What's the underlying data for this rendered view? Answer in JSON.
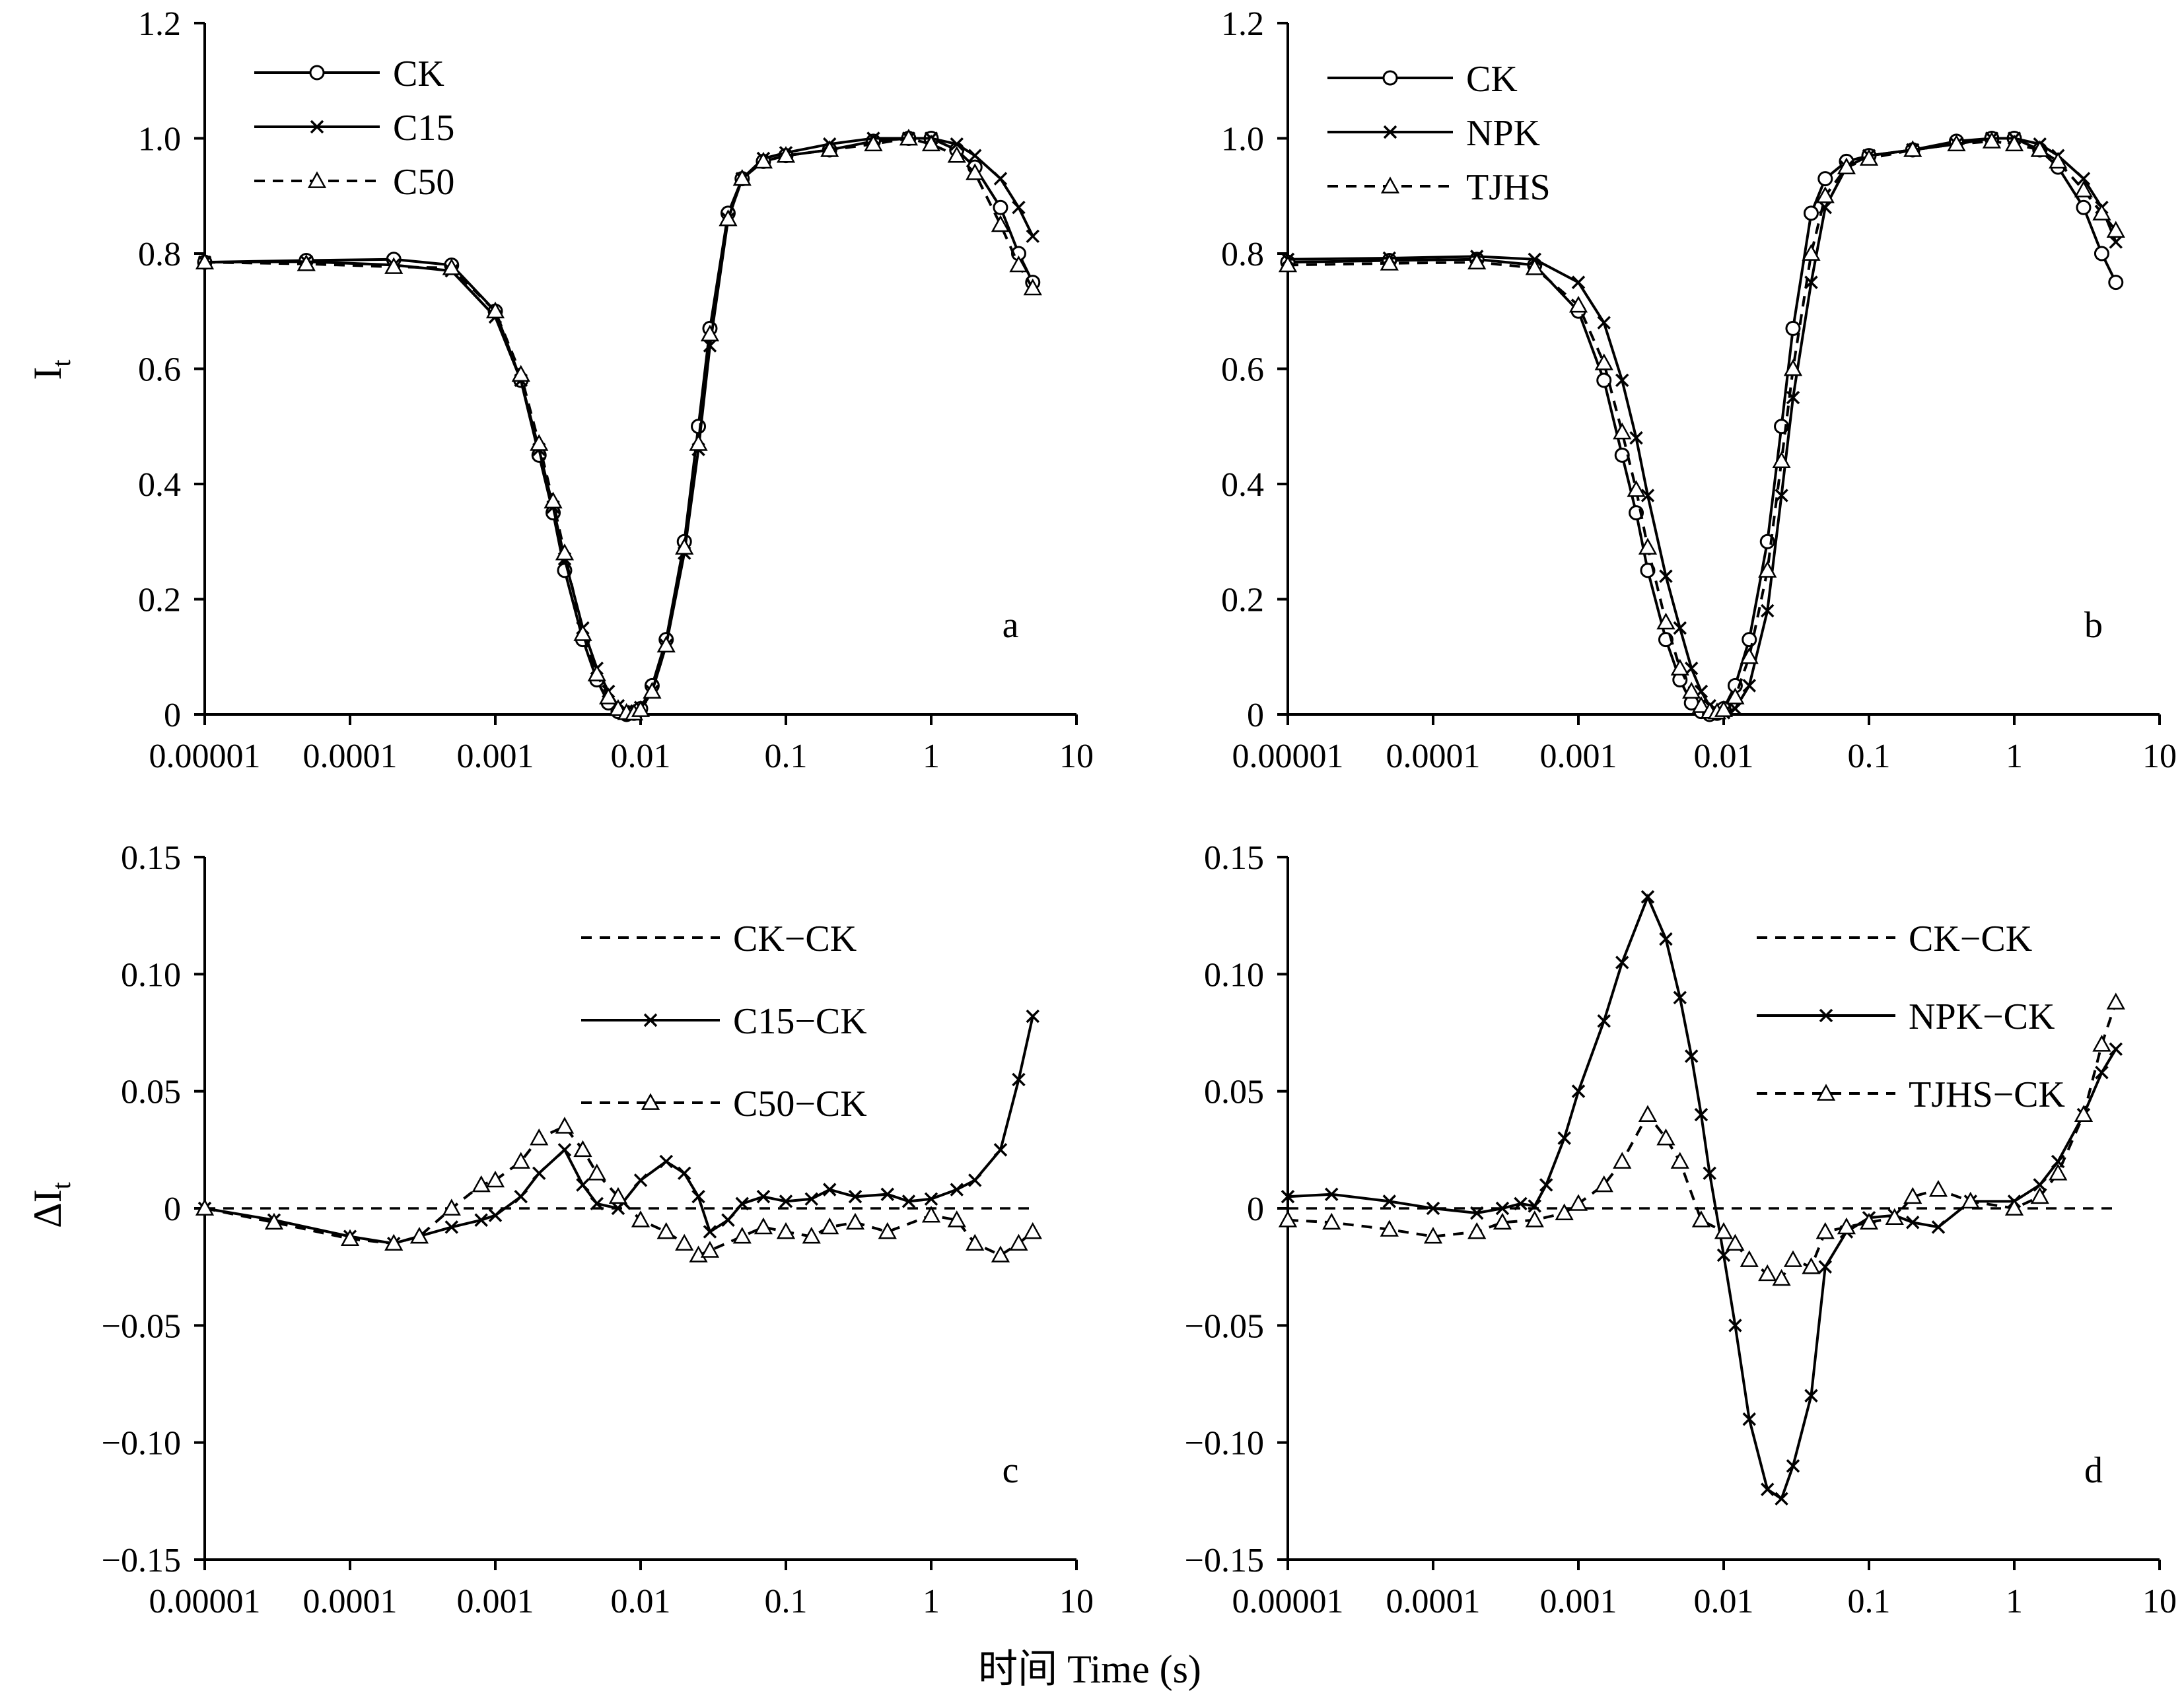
{
  "figure": {
    "shared_xlabel": "时间 Time (s)"
  },
  "chart_data": [
    {
      "id": "a",
      "type": "line",
      "panel_label": "a",
      "xscale": "log",
      "xlim": [
        1e-05,
        10
      ],
      "ylim": [
        0,
        1.2
      ],
      "xticks": [
        1e-05,
        0.0001,
        0.001,
        0.01,
        0.1,
        1,
        10
      ],
      "xtick_labels": [
        "0.00001",
        "0.0001",
        "0.001",
        "0.01",
        "0.1",
        "1",
        "10"
      ],
      "yticks": [
        0,
        0.2,
        0.4,
        0.6,
        0.8,
        1.0,
        1.2
      ],
      "ytick_labels": [
        "0",
        "0.2",
        "0.4",
        "0.6",
        "0.8",
        "1.0",
        "1.2"
      ],
      "ylabel_main": "I",
      "ylabel_sub": "t",
      "legend_position": "top-left",
      "series": [
        {
          "name": "CK",
          "line": "solid",
          "marker": "circle",
          "x": [
            1e-05,
            5e-05,
            0.0002,
            0.0005,
            0.001,
            0.0015,
            0.002,
            0.0025,
            0.003,
            0.004,
            0.005,
            0.006,
            0.007,
            0.008,
            0.009,
            0.01,
            0.012,
            0.015,
            0.02,
            0.025,
            0.03,
            0.04,
            0.05,
            0.07,
            0.1,
            0.2,
            0.4,
            0.7,
            1,
            1.5,
            2,
            3,
            4,
            5
          ],
          "y": [
            0.785,
            0.788,
            0.79,
            0.78,
            0.7,
            0.58,
            0.45,
            0.35,
            0.25,
            0.13,
            0.06,
            0.02,
            0.005,
            0.0,
            0.002,
            0.01,
            0.05,
            0.13,
            0.3,
            0.5,
            0.67,
            0.87,
            0.93,
            0.96,
            0.97,
            0.98,
            0.995,
            1.0,
            1.0,
            0.98,
            0.95,
            0.88,
            0.8,
            0.75
          ]
        },
        {
          "name": "C15",
          "line": "solid",
          "marker": "x",
          "x": [
            1e-05,
            5e-05,
            0.0002,
            0.0005,
            0.001,
            0.0015,
            0.002,
            0.0025,
            0.003,
            0.004,
            0.005,
            0.006,
            0.007,
            0.008,
            0.009,
            0.01,
            0.012,
            0.015,
            0.02,
            0.025,
            0.03,
            0.04,
            0.05,
            0.07,
            0.1,
            0.2,
            0.4,
            0.7,
            1,
            1.5,
            2,
            3,
            4,
            5
          ],
          "y": [
            0.785,
            0.786,
            0.78,
            0.77,
            0.69,
            0.58,
            0.46,
            0.36,
            0.27,
            0.15,
            0.08,
            0.04,
            0.015,
            0.006,
            0.005,
            0.012,
            0.04,
            0.12,
            0.28,
            0.46,
            0.64,
            0.86,
            0.93,
            0.965,
            0.975,
            0.99,
            1.0,
            1.0,
            1.0,
            0.99,
            0.97,
            0.93,
            0.88,
            0.83
          ]
        },
        {
          "name": "C50",
          "line": "dashed",
          "marker": "triangle",
          "x": [
            1e-05,
            5e-05,
            0.0002,
            0.0005,
            0.001,
            0.0015,
            0.002,
            0.0025,
            0.003,
            0.004,
            0.005,
            0.006,
            0.007,
            0.008,
            0.009,
            0.01,
            0.012,
            0.015,
            0.02,
            0.025,
            0.03,
            0.04,
            0.05,
            0.07,
            0.1,
            0.2,
            0.4,
            0.7,
            1,
            1.5,
            2,
            3,
            4,
            5
          ],
          "y": [
            0.785,
            0.782,
            0.777,
            0.775,
            0.7,
            0.59,
            0.47,
            0.37,
            0.28,
            0.14,
            0.07,
            0.03,
            0.01,
            0.003,
            0.002,
            0.008,
            0.04,
            0.12,
            0.29,
            0.47,
            0.66,
            0.86,
            0.93,
            0.96,
            0.97,
            0.98,
            0.99,
            1.0,
            0.99,
            0.97,
            0.94,
            0.85,
            0.78,
            0.74
          ]
        }
      ]
    },
    {
      "id": "b",
      "type": "line",
      "panel_label": "b",
      "xscale": "log",
      "xlim": [
        1e-05,
        10
      ],
      "ylim": [
        0,
        1.2
      ],
      "xticks": [
        1e-05,
        0.0001,
        0.001,
        0.01,
        0.1,
        1,
        10
      ],
      "xtick_labels": [
        "0.00001",
        "0.0001",
        "0.001",
        "0.01",
        "0.1",
        "1",
        "10"
      ],
      "yticks": [
        0,
        0.2,
        0.4,
        0.6,
        0.8,
        1.0,
        1.2
      ],
      "ytick_labels": [
        "0",
        "0.2",
        "0.4",
        "0.6",
        "0.8",
        "1.0",
        "1.2"
      ],
      "legend_position": "top-left",
      "series": [
        {
          "name": "CK",
          "line": "solid",
          "marker": "circle",
          "x": [
            1e-05,
            5e-05,
            0.0002,
            0.0005,
            0.001,
            0.0015,
            0.002,
            0.0025,
            0.003,
            0.004,
            0.005,
            0.006,
            0.007,
            0.008,
            0.009,
            0.01,
            0.012,
            0.015,
            0.02,
            0.025,
            0.03,
            0.04,
            0.05,
            0.07,
            0.1,
            0.2,
            0.4,
            0.7,
            1,
            1.5,
            2,
            3,
            4,
            5
          ],
          "y": [
            0.785,
            0.788,
            0.79,
            0.78,
            0.7,
            0.58,
            0.45,
            0.35,
            0.25,
            0.13,
            0.06,
            0.02,
            0.005,
            0.0,
            0.002,
            0.01,
            0.05,
            0.13,
            0.3,
            0.5,
            0.67,
            0.87,
            0.93,
            0.96,
            0.97,
            0.98,
            0.995,
            1.0,
            1.0,
            0.98,
            0.95,
            0.88,
            0.8,
            0.75
          ]
        },
        {
          "name": "NPK",
          "line": "solid",
          "marker": "x",
          "x": [
            1e-05,
            5e-05,
            0.0002,
            0.0005,
            0.001,
            0.0015,
            0.002,
            0.0025,
            0.003,
            0.004,
            0.005,
            0.006,
            0.007,
            0.008,
            0.009,
            0.01,
            0.012,
            0.015,
            0.02,
            0.025,
            0.03,
            0.04,
            0.05,
            0.07,
            0.1,
            0.2,
            0.4,
            0.7,
            1,
            1.5,
            2,
            3,
            4,
            5
          ],
          "y": [
            0.79,
            0.792,
            0.795,
            0.79,
            0.75,
            0.68,
            0.58,
            0.48,
            0.38,
            0.24,
            0.15,
            0.08,
            0.04,
            0.015,
            0.006,
            0.003,
            0.01,
            0.05,
            0.18,
            0.38,
            0.55,
            0.75,
            0.88,
            0.95,
            0.97,
            0.98,
            0.99,
            1.0,
            1.0,
            0.99,
            0.97,
            0.93,
            0.88,
            0.82
          ]
        },
        {
          "name": "TJHS",
          "line": "dashed",
          "marker": "triangle",
          "x": [
            1e-05,
            5e-05,
            0.0002,
            0.0005,
            0.001,
            0.0015,
            0.002,
            0.0025,
            0.003,
            0.004,
            0.005,
            0.006,
            0.007,
            0.008,
            0.009,
            0.01,
            0.012,
            0.015,
            0.02,
            0.025,
            0.03,
            0.04,
            0.05,
            0.07,
            0.1,
            0.2,
            0.4,
            0.7,
            1,
            1.5,
            2,
            3,
            4,
            5
          ],
          "y": [
            0.78,
            0.783,
            0.785,
            0.775,
            0.71,
            0.61,
            0.49,
            0.39,
            0.29,
            0.16,
            0.08,
            0.04,
            0.015,
            0.005,
            0.004,
            0.008,
            0.03,
            0.1,
            0.25,
            0.44,
            0.6,
            0.8,
            0.9,
            0.95,
            0.965,
            0.98,
            0.99,
            0.995,
            0.99,
            0.98,
            0.96,
            0.91,
            0.87,
            0.84
          ]
        }
      ]
    },
    {
      "id": "c",
      "type": "line",
      "panel_label": "c",
      "xscale": "log",
      "xlim": [
        1e-05,
        10
      ],
      "ylim": [
        -0.15,
        0.15
      ],
      "xticks": [
        1e-05,
        0.0001,
        0.001,
        0.01,
        0.1,
        1,
        10
      ],
      "xtick_labels": [
        "0.00001",
        "0.0001",
        "0.001",
        "0.01",
        "0.1",
        "1",
        "10"
      ],
      "yticks": [
        -0.15,
        -0.1,
        -0.05,
        0,
        0.05,
        0.1,
        0.15
      ],
      "ytick_labels": [
        "−0.15",
        "−0.10",
        "−0.05",
        "0",
        "0.05",
        "0.10",
        "0.15"
      ],
      "ylabel_main": "ΔI",
      "ylabel_sub": "t",
      "legend_position": "top-right",
      "series": [
        {
          "name": "CK−CK",
          "line": "dashed",
          "marker": "none",
          "x": [
            1e-05,
            5
          ],
          "y": [
            0,
            0
          ]
        },
        {
          "name": "C15−CK",
          "line": "solid",
          "marker": "x",
          "x": [
            1e-05,
            3e-05,
            0.0001,
            0.0002,
            0.0005,
            0.0008,
            0.001,
            0.0015,
            0.002,
            0.003,
            0.004,
            0.005,
            0.007,
            0.01,
            0.015,
            0.02,
            0.025,
            0.03,
            0.04,
            0.05,
            0.07,
            0.1,
            0.15,
            0.2,
            0.3,
            0.5,
            0.7,
            1,
            1.5,
            2,
            3,
            4,
            5
          ],
          "y": [
            0,
            -0.005,
            -0.012,
            -0.015,
            -0.008,
            -0.005,
            -0.003,
            0.005,
            0.015,
            0.025,
            0.01,
            0.002,
            0,
            0.012,
            0.02,
            0.015,
            0.005,
            -0.01,
            -0.005,
            0.002,
            0.005,
            0.003,
            0.004,
            0.008,
            0.005,
            0.006,
            0.003,
            0.004,
            0.008,
            0.012,
            0.025,
            0.055,
            0.082
          ]
        },
        {
          "name": "C50−CK",
          "line": "dashed",
          "marker": "triangle",
          "x": [
            1e-05,
            3e-05,
            0.0001,
            0.0002,
            0.0003,
            0.0005,
            0.0008,
            0.001,
            0.0015,
            0.002,
            0.003,
            0.004,
            0.005,
            0.007,
            0.01,
            0.015,
            0.02,
            0.025,
            0.03,
            0.05,
            0.07,
            0.1,
            0.15,
            0.2,
            0.3,
            0.5,
            1,
            1.5,
            2,
            3,
            4,
            5
          ],
          "y": [
            0,
            -0.006,
            -0.013,
            -0.015,
            -0.012,
            0.0,
            0.01,
            0.012,
            0.02,
            0.03,
            0.035,
            0.025,
            0.015,
            0.005,
            -0.005,
            -0.01,
            -0.015,
            -0.02,
            -0.018,
            -0.012,
            -0.008,
            -0.01,
            -0.012,
            -0.008,
            -0.006,
            -0.01,
            -0.003,
            -0.005,
            -0.015,
            -0.02,
            -0.015,
            -0.01
          ]
        }
      ]
    },
    {
      "id": "d",
      "type": "line",
      "panel_label": "d",
      "xscale": "log",
      "xlim": [
        1e-05,
        10
      ],
      "ylim": [
        -0.15,
        0.15
      ],
      "xticks": [
        1e-05,
        0.0001,
        0.001,
        0.01,
        0.1,
        1,
        10
      ],
      "xtick_labels": [
        "0.00001",
        "0.0001",
        "0.001",
        "0.01",
        "0.1",
        "1",
        "10"
      ],
      "yticks": [
        -0.15,
        -0.1,
        -0.05,
        0,
        0.05,
        0.1,
        0.15
      ],
      "ytick_labels": [
        "−0.15",
        "−0.10",
        "−0.05",
        "0",
        "0.05",
        "0.10",
        "0.15"
      ],
      "legend_position": "top-right",
      "series": [
        {
          "name": "CK−CK",
          "line": "dashed",
          "marker": "none",
          "x": [
            1e-05,
            5
          ],
          "y": [
            0,
            0
          ]
        },
        {
          "name": "NPK−CK",
          "line": "solid",
          "marker": "x",
          "x": [
            1e-05,
            2e-05,
            5e-05,
            0.0001,
            0.0002,
            0.0003,
            0.0004,
            0.0005,
            0.0006,
            0.0008,
            0.001,
            0.0015,
            0.002,
            0.003,
            0.004,
            0.005,
            0.006,
            0.007,
            0.008,
            0.01,
            0.012,
            0.015,
            0.02,
            0.025,
            0.03,
            0.04,
            0.05,
            0.07,
            0.1,
            0.15,
            0.2,
            0.3,
            0.5,
            1,
            1.5,
            2,
            3,
            4,
            5
          ],
          "y": [
            0.005,
            0.006,
            0.003,
            0.0,
            -0.002,
            0.0,
            0.002,
            0.001,
            0.01,
            0.03,
            0.05,
            0.08,
            0.105,
            0.133,
            0.115,
            0.09,
            0.065,
            0.04,
            0.015,
            -0.02,
            -0.05,
            -0.09,
            -0.12,
            -0.124,
            -0.11,
            -0.08,
            -0.025,
            -0.01,
            -0.004,
            -0.003,
            -0.006,
            -0.008,
            0.003,
            0.003,
            0.01,
            0.02,
            0.04,
            0.058,
            0.068
          ]
        },
        {
          "name": "TJHS−CK",
          "line": "dashed",
          "marker": "triangle",
          "x": [
            1e-05,
            2e-05,
            5e-05,
            0.0001,
            0.0002,
            0.0003,
            0.0005,
            0.0008,
            0.001,
            0.0015,
            0.002,
            0.003,
            0.004,
            0.005,
            0.007,
            0.01,
            0.012,
            0.015,
            0.02,
            0.025,
            0.03,
            0.04,
            0.05,
            0.07,
            0.1,
            0.15,
            0.2,
            0.3,
            0.5,
            1,
            1.5,
            2,
            3,
            4,
            5
          ],
          "y": [
            -0.005,
            -0.006,
            -0.009,
            -0.012,
            -0.01,
            -0.006,
            -0.005,
            -0.002,
            0.002,
            0.01,
            0.02,
            0.04,
            0.03,
            0.02,
            -0.005,
            -0.01,
            -0.015,
            -0.022,
            -0.028,
            -0.03,
            -0.022,
            -0.025,
            -0.01,
            -0.008,
            -0.006,
            -0.004,
            0.005,
            0.008,
            0.003,
            0.0,
            0.005,
            0.015,
            0.04,
            0.07,
            0.088
          ]
        }
      ]
    }
  ]
}
